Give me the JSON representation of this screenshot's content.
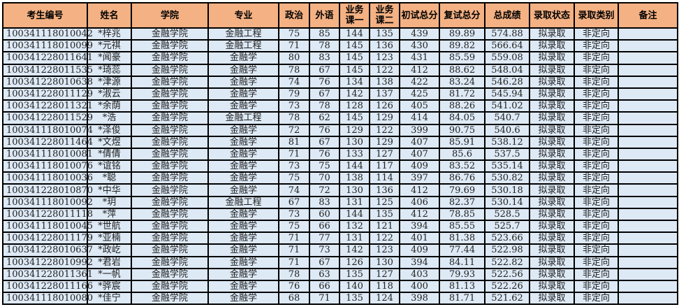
{
  "headers": [
    "考生编号",
    "姓名",
    "学院",
    "专业",
    "政治",
    "外语",
    "业务\n课一",
    "业务\n课二",
    "初试总分",
    "复试总分",
    "总成绩",
    "录取状态",
    "录取类别",
    "备注"
  ],
  "rows": [
    [
      "100341118010042",
      "*梓兆",
      "金融学院",
      "金融工程",
      "75",
      "85",
      "144",
      "135",
      "439",
      "89.89",
      "574.88",
      "拟录取",
      "非定向",
      ""
    ],
    [
      "100341118010099",
      "*元祺",
      "金融学院",
      "金融工程",
      "71",
      "78",
      "145",
      "136",
      "430",
      "89.82",
      "566.64",
      "拟录取",
      "非定向",
      ""
    ],
    [
      "100341228011641",
      "*闻豪",
      "金融学院",
      "金融学",
      "80",
      "83",
      "145",
      "123",
      "431",
      "85.59",
      "559.08",
      "拟录取",
      "非定向",
      ""
    ],
    [
      "100341228011535",
      "*琦蕊",
      "金融学院",
      "金融学",
      "78",
      "67",
      "145",
      "122",
      "412",
      "88.62",
      "548.04",
      "拟录取",
      "非定向",
      ""
    ],
    [
      "100341228010638",
      "*津源",
      "金融学院",
      "金融学",
      "74",
      "76",
      "134",
      "138",
      "422",
      "83.24",
      "546.28",
      "拟录取",
      "非定向",
      ""
    ],
    [
      "100341228011129",
      "*淑云",
      "金融学院",
      "金融学",
      "79",
      "67",
      "142",
      "137",
      "425",
      "81.72",
      "545.94",
      "拟录取",
      "非定向",
      ""
    ],
    [
      "100341228011321",
      "*余荫",
      "金融学院",
      "金融学",
      "73",
      "78",
      "128",
      "126",
      "405",
      "88.26",
      "541.02",
      "拟录取",
      "非定向",
      ""
    ],
    [
      "100341228011529",
      "*浩",
      "金融学院",
      "金融工程",
      "78",
      "62",
      "145",
      "129",
      "414",
      "84.05",
      "540.7",
      "拟录取",
      "非定向",
      ""
    ],
    [
      "100341118010074",
      "*泽俊",
      "金融学院",
      "金融学",
      "72",
      "76",
      "129",
      "122",
      "399",
      "90.75",
      "540.6",
      "拟录取",
      "非定向",
      ""
    ],
    [
      "100341228011464",
      "*文煜",
      "金融学院",
      "金融学",
      "81",
      "67",
      "130",
      "129",
      "407",
      "85.91",
      "538.12",
      "拟录取",
      "非定向",
      ""
    ],
    [
      "100341118010081",
      "*倩倩",
      "金融学院",
      "金融学",
      "71",
      "76",
      "133",
      "127",
      "407",
      "85.6",
      "537.5",
      "拟录取",
      "非定向",
      ""
    ],
    [
      "100341118010076",
      "*谊铭",
      "金融学院",
      "金融学",
      "73",
      "75",
      "144",
      "117",
      "409",
      "83.52",
      "535.14",
      "拟录取",
      "非定向",
      ""
    ],
    [
      "100341118010036",
      "*聪",
      "金融学院",
      "金融学",
      "75",
      "70",
      "138",
      "114",
      "397",
      "86.76",
      "530.82",
      "拟录取",
      "非定向",
      ""
    ],
    [
      "100341228010870",
      "*中华",
      "金融学院",
      "金融学",
      "74",
      "72",
      "130",
      "136",
      "412",
      "79.69",
      "530.18",
      "拟录取",
      "非定向",
      ""
    ],
    [
      "100341118010092",
      "*玥",
      "金融学院",
      "金融工程",
      "67",
      "83",
      "131",
      "125",
      "406",
      "82.37",
      "530.14",
      "拟录取",
      "非定向",
      ""
    ],
    [
      "100341228011118",
      "*萍",
      "金融学院",
      "金融学",
      "73",
      "60",
      "144",
      "135",
      "412",
      "78.85",
      "528.5",
      "拟录取",
      "非定向",
      ""
    ],
    [
      "100341118010045",
      "*世航",
      "金融学院",
      "金融学",
      "75",
      "66",
      "132",
      "121",
      "394",
      "85.55",
      "525.7",
      "拟录取",
      "非定向",
      ""
    ],
    [
      "100341228011179",
      "*亚楠",
      "金融学院",
      "金融学",
      "71",
      "77",
      "131",
      "122",
      "401",
      "81.38",
      "523.66",
      "拟录取",
      "非定向",
      ""
    ],
    [
      "100341228010637",
      "*政屹",
      "金融学院",
      "金融学",
      "71",
      "73",
      "142",
      "123",
      "409",
      "77.44",
      "522.98",
      "拟录取",
      "非定向",
      ""
    ],
    [
      "100341228010992",
      "*君岩",
      "金融学院",
      "金融学",
      "71",
      "67",
      "126",
      "130",
      "394",
      "84.11",
      "522.82",
      "拟录取",
      "非定向",
      ""
    ],
    [
      "100341228011361",
      "*一帆",
      "金融学院",
      "金融学",
      "78",
      "63",
      "135",
      "127",
      "403",
      "79.93",
      "522.56",
      "拟录取",
      "非定向",
      ""
    ],
    [
      "100341228011166",
      "*骅宸",
      "金融学院",
      "金融学",
      "76",
      "66",
      "140",
      "118",
      "400",
      "81.13",
      "522.26",
      "拟录取",
      "非定向",
      ""
    ],
    [
      "100341118010080",
      "*佳宁",
      "金融学院",
      "金融学",
      "68",
      "71",
      "135",
      "124",
      "398",
      "81.71",
      "521.62",
      "拟录取",
      "非定向",
      ""
    ]
  ]
}
